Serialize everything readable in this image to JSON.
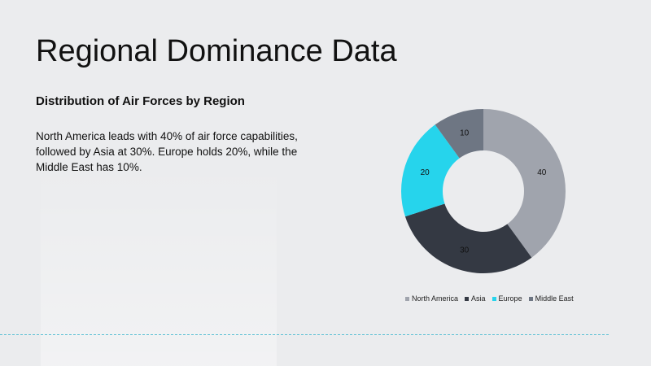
{
  "slide": {
    "title": "Regional Dominance Data",
    "subtitle": "Distribution of Air Forces by Region",
    "body": "North America leads with 40% of air force capabilities, followed by Asia at 30%. Europe holds 20%, while the Middle East has 10%."
  },
  "chart_data": {
    "type": "pie",
    "donut": true,
    "categories": [
      "North America",
      "Asia",
      "Europe",
      "Middle East"
    ],
    "values": [
      40,
      30,
      20,
      10
    ],
    "colors": [
      "#a0a4ad",
      "#343943",
      "#26d4ec",
      "#6e7683"
    ],
    "data_labels": [
      "40",
      "30",
      "20",
      "10"
    ],
    "legend_position": "bottom"
  }
}
